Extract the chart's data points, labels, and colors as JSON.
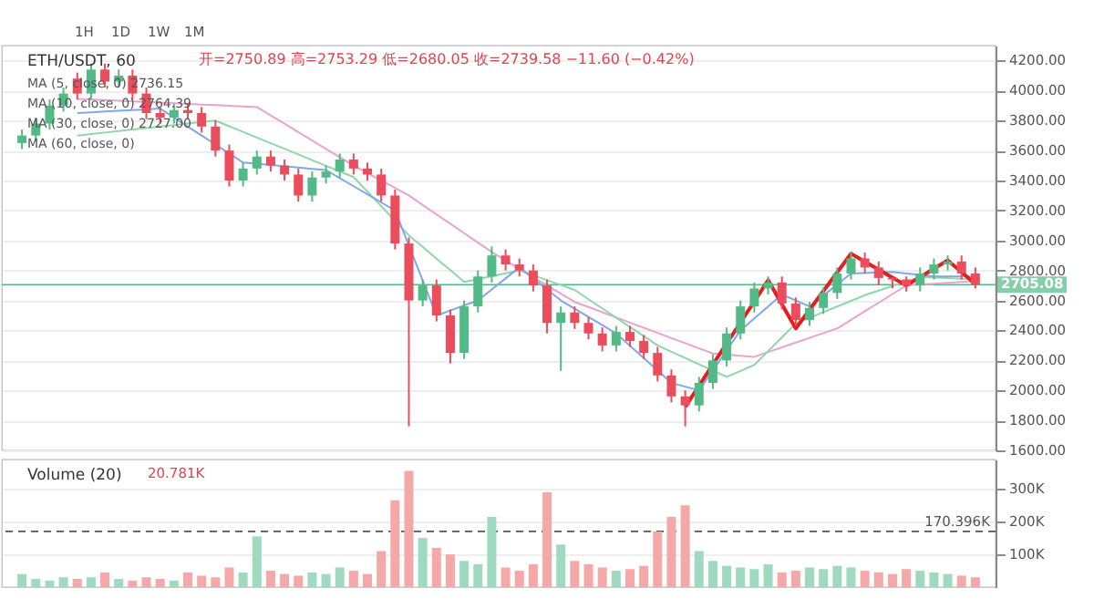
{
  "chart_data": [
    {
      "type": "candlestick",
      "title": "ETH/USDT, 60",
      "subtitle": "开=2750.89  高=2753.29  低=2680.05  收=2739.58  −11.60 (−0.42%)",
      "categories": [
        null,
        null,
        null,
        null,
        null,
        null,
        null,
        null,
        null,
        null,
        null,
        null,
        null,
        null,
        null,
        null,
        null,
        null,
        null,
        null,
        null,
        null,
        null,
        null,
        null,
        null,
        null,
        null,
        null,
        null,
        null,
        null,
        null,
        null,
        null,
        null,
        null,
        null,
        null,
        null,
        null,
        null,
        null,
        null,
        null,
        null,
        null,
        null,
        null,
        null,
        null,
        null,
        null,
        null,
        null,
        null,
        null,
        null,
        null,
        null,
        null,
        null,
        null,
        null,
        null,
        null,
        null,
        null,
        null,
        null
      ],
      "ohlc": [
        [
          3650,
          3740,
          3610,
          3700
        ],
        [
          3700,
          3820,
          3660,
          3780
        ],
        [
          3780,
          3940,
          3740,
          3900
        ],
        [
          3900,
          4020,
          3860,
          3980
        ],
        [
          4080,
          4120,
          3940,
          3980
        ],
        [
          3980,
          4180,
          3940,
          4140
        ],
        [
          4140,
          4180,
          4020,
          4060
        ],
        [
          4060,
          4140,
          4020,
          4100
        ],
        [
          4100,
          4140,
          3940,
          3980
        ],
        [
          3980,
          4020,
          3810,
          3850
        ],
        [
          3850,
          3890,
          3780,
          3820
        ],
        [
          3820,
          3910,
          3780,
          3870
        ],
        [
          3870,
          3910,
          3810,
          3850
        ],
        [
          3850,
          3890,
          3720,
          3760
        ],
        [
          3760,
          3800,
          3560,
          3600
        ],
        [
          3600,
          3640,
          3360,
          3400
        ],
        [
          3400,
          3520,
          3360,
          3480
        ],
        [
          3480,
          3600,
          3440,
          3560
        ],
        [
          3560,
          3600,
          3460,
          3500
        ],
        [
          3500,
          3540,
          3400,
          3440
        ],
        [
          3440,
          3480,
          3260,
          3300
        ],
        [
          3300,
          3460,
          3260,
          3420
        ],
        [
          3420,
          3500,
          3380,
          3460
        ],
        [
          3460,
          3580,
          3420,
          3540
        ],
        [
          3540,
          3580,
          3440,
          3480
        ],
        [
          3480,
          3520,
          3400,
          3440
        ],
        [
          3440,
          3480,
          3260,
          3300
        ],
        [
          3300,
          3340,
          2940,
          2980
        ],
        [
          2980,
          3020,
          1760,
          2600
        ],
        [
          2600,
          2740,
          2560,
          2700
        ],
        [
          2700,
          2740,
          2460,
          2500
        ],
        [
          2500,
          2540,
          2180,
          2250
        ],
        [
          2250,
          2600,
          2210,
          2560
        ],
        [
          2560,
          2800,
          2520,
          2760
        ],
        [
          2760,
          2960,
          2720,
          2900
        ],
        [
          2900,
          2940,
          2800,
          2840
        ],
        [
          2840,
          2880,
          2760,
          2800
        ],
        [
          2800,
          2840,
          2660,
          2700
        ],
        [
          2700,
          2740,
          2380,
          2450
        ],
        [
          2450,
          2560,
          2130,
          2520
        ],
        [
          2520,
          2560,
          2410,
          2450
        ],
        [
          2450,
          2490,
          2340,
          2380
        ],
        [
          2380,
          2420,
          2260,
          2300
        ],
        [
          2300,
          2430,
          2260,
          2390
        ],
        [
          2390,
          2430,
          2290,
          2330
        ],
        [
          2330,
          2370,
          2210,
          2250
        ],
        [
          2250,
          2290,
          2060,
          2100
        ],
        [
          2100,
          2140,
          1920,
          1960
        ],
        [
          1960,
          2000,
          1760,
          1900
        ],
        [
          1900,
          2090,
          1860,
          2050
        ],
        [
          2050,
          2240,
          2010,
          2200
        ],
        [
          2200,
          2420,
          2160,
          2380
        ],
        [
          2380,
          2600,
          2340,
          2560
        ],
        [
          2560,
          2720,
          2520,
          2680
        ],
        [
          2680,
          2760,
          2640,
          2720
        ],
        [
          2720,
          2760,
          2540,
          2580
        ],
        [
          2580,
          2620,
          2430,
          2470
        ],
        [
          2470,
          2590,
          2430,
          2550
        ],
        [
          2550,
          2690,
          2510,
          2650
        ],
        [
          2650,
          2820,
          2610,
          2780
        ],
        [
          2780,
          2920,
          2740,
          2880
        ],
        [
          2880,
          2920,
          2780,
          2820
        ],
        [
          2820,
          2860,
          2700,
          2750
        ],
        [
          2750.89,
          2753.29,
          2680.05,
          2739.58
        ],
        [
          2739.58,
          2760,
          2660,
          2700
        ],
        [
          2700,
          2820,
          2660,
          2780
        ],
        [
          2780,
          2880,
          2740,
          2840
        ],
        [
          2840,
          2900,
          2800,
          2860
        ],
        [
          2860,
          2900,
          2740,
          2780
        ],
        [
          2780,
          2820,
          2680,
          2705
        ]
      ],
      "colors": [
        "#53b987",
        "#53b987",
        "#53b987",
        "#53b987",
        "#eb4d5c",
        "#53b987",
        "#eb4d5c",
        "#53b987",
        "#eb4d5c",
        "#eb4d5c",
        "#eb4d5c",
        "#53b987",
        "#eb4d5c",
        "#eb4d5c",
        "#eb4d5c",
        "#eb4d5c",
        "#53b987",
        "#53b987",
        "#eb4d5c",
        "#eb4d5c",
        "#eb4d5c",
        "#53b987",
        "#53b987",
        "#53b987",
        "#eb4d5c",
        "#eb4d5c",
        "#eb4d5c",
        "#eb4d5c",
        "#eb4d5c",
        "#53b987",
        "#eb4d5c",
        "#eb4d5c",
        "#53b987",
        "#53b987",
        "#53b987",
        "#eb4d5c",
        "#eb4d5c",
        "#eb4d5c",
        "#eb4d5c",
        "#53b987",
        "#eb4d5c",
        "#eb4d5c",
        "#eb4d5c",
        "#53b987",
        "#eb4d5c",
        "#eb4d5c",
        "#eb4d5c",
        "#eb4d5c",
        "#eb4d5c",
        "#53b987",
        "#53b987",
        "#53b987",
        "#53b987",
        "#53b987",
        "#53b987",
        "#eb4d5c",
        "#eb4d5c",
        "#53b987",
        "#53b987",
        "#53b987",
        "#53b987",
        "#eb4d5c",
        "#eb4d5c",
        "#eb4d5c",
        "#eb4d5c",
        "#53b987",
        "#53b987",
        "#53b987",
        "#eb4d5c",
        "#eb4d5c"
      ],
      "ylim": [
        1600,
        4300
      ],
      "yticks": [
        {
          "value": 1600,
          "label": "1600.00"
        },
        {
          "value": 1800,
          "label": "1800.00"
        },
        {
          "value": 2000,
          "label": "2000.00"
        },
        {
          "value": 2200,
          "label": "2200.00"
        },
        {
          "value": 2400,
          "label": "2400.00"
        },
        {
          "value": 2600,
          "label": "2600.00"
        },
        {
          "value": 2800,
          "label": "2800.00"
        },
        {
          "value": 3000,
          "label": "3000.00"
        },
        {
          "value": 3200,
          "label": "3200.00"
        },
        {
          "value": 3400,
          "label": "3400.00"
        },
        {
          "value": 3600,
          "label": "3600.00"
        },
        {
          "value": 3800,
          "label": "3800.00"
        },
        {
          "value": 4000,
          "label": "4000.00"
        },
        {
          "value": 4200,
          "label": "4200.00"
        }
      ],
      "tick_labels": "y",
      "grid": "y",
      "ref_lines": [
        {
          "axis": "y",
          "value": 2705.08,
          "label": "2705.08",
          "color": "#53b987"
        }
      ],
      "annotations": [
        "1H",
        "1D",
        "1W",
        "1M",
        "MA (5, close, 0)  2736.15",
        "MA (10, close, 0)  2764.39",
        "MA (30, close, 0)  2727.00",
        "MA (60, close, 0)"
      ],
      "series": [
        {
          "type": "line",
          "color": "#e8a3cf",
          "values": [
            null,
            null,
            null,
            null,
            3945,
            3941,
            3937,
            3932,
            3928,
            3924,
            3920,
            3915,
            3911,
            3907,
            3903,
            3898,
            3894,
            3890,
            3834,
            3779,
            3723,
            3667,
            3611,
            3556,
            3500,
            3450,
            3400,
            3350,
            3300,
            3237,
            3174,
            3112,
            3049,
            2986,
            2923,
            2867,
            2810,
            2755,
            2700,
            2645,
            2590,
            2556,
            2521,
            2487,
            2452,
            2418,
            2384,
            2349,
            2315,
            2280,
            2246,
            2239,
            2231,
            2224,
            2256,
            2287,
            2319,
            2350,
            2382,
            2413,
            2470,
            2528,
            2585,
            2643,
            2700,
            2706,
            2712,
            2718,
            2724,
            2730
          ]
        },
        {
          "type": "line",
          "color": "#8fd6a8",
          "values": [
            null,
            null,
            null,
            null,
            3700,
            3710,
            3720,
            3730,
            3740,
            3750,
            3760,
            3770,
            3780,
            3790,
            3800,
            3762,
            3725,
            3687,
            3649,
            3612,
            3574,
            3536,
            3498,
            3461,
            3423,
            3326,
            3229,
            3131,
            3034,
            2957,
            2879,
            2802,
            2724,
            2743,
            2762,
            2781,
            2800,
            2768,
            2735,
            2703,
            2670,
            2608,
            2547,
            2485,
            2423,
            2362,
            2300,
            2258,
            2216,
            2174,
            2132,
            2090,
            2130,
            2170,
            2262,
            2354,
            2446,
            2484,
            2522,
            2559,
            2597,
            2635,
            2666,
            2696,
            2727,
            2757,
            2753,
            2749,
            2744,
            2740
          ]
        },
        {
          "type": "line",
          "color": "#7fa8e8",
          "values": [
            null,
            null,
            null,
            null,
            3850,
            3855,
            3860,
            3865,
            3870,
            3875,
            3880,
            3820,
            3760,
            3700,
            3640,
            3580,
            3520,
            3512,
            3503,
            3495,
            3487,
            3478,
            3470,
            3416,
            3362,
            3308,
            3254,
            3200,
            2967,
            2733,
            2500,
            2533,
            2567,
            2600,
            2673,
            2747,
            2820,
            2747,
            2673,
            2600,
            2545,
            2490,
            2435,
            2380,
            2298,
            2215,
            2133,
            2050,
            2025,
            2000,
            2133,
            2267,
            2400,
            2480,
            2560,
            2640,
            2600,
            2560,
            2633,
            2707,
            2780,
            2783,
            2787,
            2790,
            2780,
            2770,
            2760,
            2760,
            2760,
            2760
          ]
        },
        {
          "type": "line",
          "color": "#e51c1c",
          "values": [
            null,
            null,
            null,
            null,
            null,
            null,
            null,
            null,
            null,
            null,
            null,
            null,
            null,
            null,
            null,
            null,
            null,
            null,
            null,
            null,
            null,
            null,
            null,
            null,
            null,
            null,
            null,
            null,
            null,
            null,
            null,
            null,
            null,
            null,
            null,
            null,
            null,
            null,
            null,
            null,
            null,
            null,
            null,
            null,
            null,
            null,
            null,
            null,
            1890,
            2031,
            2172,
            2313,
            2453,
            2594,
            2735,
            2574,
            2413,
            2538,
            2663,
            2787,
            2912,
            2859,
            2806,
            2753,
            2700,
            2756,
            2812,
            2868,
            2789,
            2710
          ]
        }
      ]
    },
    {
      "type": "bar",
      "title": "Volume (20)",
      "annotations": [
        "20.781K"
      ],
      "categories": [
        null,
        null,
        null,
        null,
        null,
        null,
        null,
        null,
        null,
        null,
        null,
        null,
        null,
        null,
        null,
        null,
        null,
        null,
        null,
        null,
        null,
        null,
        null,
        null,
        null,
        null,
        null,
        null,
        null,
        null,
        null,
        null,
        null,
        null,
        null,
        null,
        null,
        null,
        null,
        null,
        null,
        null,
        null,
        null,
        null,
        null,
        null,
        null,
        null,
        null,
        null,
        null,
        null,
        null,
        null,
        null,
        null,
        null,
        null,
        null,
        null,
        null,
        null,
        null,
        null,
        null,
        null,
        null,
        null,
        null
      ],
      "values": [
        40000,
        25000,
        20000,
        30000,
        25000,
        30000,
        45000,
        25000,
        20000,
        30000,
        25000,
        20000,
        45000,
        35000,
        30000,
        60000,
        45000,
        155000,
        50000,
        40000,
        35000,
        45000,
        40000,
        60000,
        50000,
        40000,
        110000,
        265000,
        355000,
        150000,
        120000,
        100000,
        80000,
        70000,
        215000,
        60000,
        50000,
        70000,
        290000,
        130000,
        80000,
        70000,
        60000,
        50000,
        55000,
        65000,
        170000,
        215000,
        250000,
        110000,
        80000,
        65000,
        60000,
        55000,
        70000,
        45000,
        50000,
        60000,
        55000,
        65000,
        60000,
        50000,
        45000,
        40000,
        55000,
        50000,
        45000,
        40000,
        35000,
        30000
      ],
      "colors": [
        "#9fd9c0",
        "#9fd9c0",
        "#9fd9c0",
        "#9fd9c0",
        "#f5a8a8",
        "#9fd9c0",
        "#f5a8a8",
        "#9fd9c0",
        "#f5a8a8",
        "#f5a8a8",
        "#f5a8a8",
        "#9fd9c0",
        "#f5a8a8",
        "#f5a8a8",
        "#f5a8a8",
        "#f5a8a8",
        "#9fd9c0",
        "#9fd9c0",
        "#f5a8a8",
        "#f5a8a8",
        "#f5a8a8",
        "#9fd9c0",
        "#9fd9c0",
        "#9fd9c0",
        "#f5a8a8",
        "#f5a8a8",
        "#f5a8a8",
        "#f5a8a8",
        "#f5a8a8",
        "#9fd9c0",
        "#f5a8a8",
        "#f5a8a8",
        "#9fd9c0",
        "#9fd9c0",
        "#9fd9c0",
        "#f5a8a8",
        "#f5a8a8",
        "#f5a8a8",
        "#f5a8a8",
        "#9fd9c0",
        "#f5a8a8",
        "#f5a8a8",
        "#f5a8a8",
        "#9fd9c0",
        "#f5a8a8",
        "#f5a8a8",
        "#f5a8a8",
        "#f5a8a8",
        "#f5a8a8",
        "#9fd9c0",
        "#9fd9c0",
        "#9fd9c0",
        "#9fd9c0",
        "#9fd9c0",
        "#9fd9c0",
        "#f5a8a8",
        "#f5a8a8",
        "#9fd9c0",
        "#9fd9c0",
        "#9fd9c0",
        "#9fd9c0",
        "#f5a8a8",
        "#f5a8a8",
        "#f5a8a8",
        "#f5a8a8",
        "#9fd9c0",
        "#9fd9c0",
        "#9fd9c0",
        "#f5a8a8",
        "#f5a8a8"
      ],
      "ylim": [
        0,
        390000
      ],
      "yticks": [
        {
          "value": 100000,
          "label": "100K"
        },
        {
          "value": 200000,
          "label": "200K"
        },
        {
          "value": 300000,
          "label": "300K"
        }
      ],
      "tick_labels": "y",
      "grid": "y",
      "ref_lines": [
        {
          "axis": "y",
          "value": 170396,
          "label": "170.396K",
          "color": "#555555",
          "line_style": "dashed"
        }
      ]
    }
  ]
}
